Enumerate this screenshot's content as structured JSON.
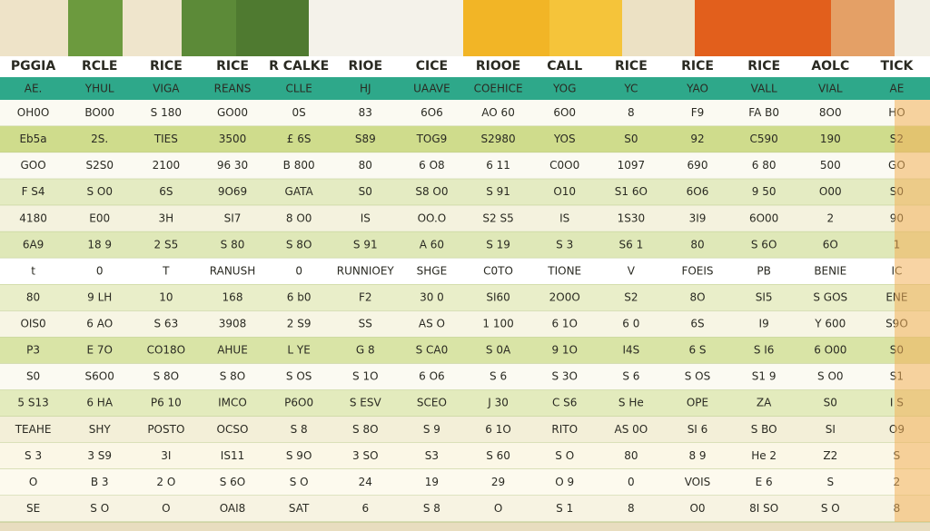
{
  "header": [
    "PGGIA",
    "RCLE",
    "RICE",
    "RICE",
    "R CALKE",
    "RIOE",
    "CICE",
    "RIOOE",
    "CALL",
    "RICE",
    "RICE",
    "RICE",
    "AOLC",
    "TICK"
  ],
  "subheader": [
    "AE.",
    "YHUL",
    "VIGA",
    "REANS",
    "CLLE",
    "HJ",
    "UAAVE",
    "COEHICE",
    "YOG",
    "YC",
    "YAO",
    "VALL",
    "VIAL",
    "AE"
  ],
  "rows": [
    {
      "color": "#fbfaf2",
      "cells": [
        "OH0O",
        "BO00",
        "S 180",
        "GO00",
        "0S",
        "83",
        "6O6",
        "AO 60",
        "6O0",
        "8",
        "F9",
        "FA B0",
        "8O0",
        "HO"
      ]
    },
    {
      "color": "#cfdc8c",
      "cells": [
        "Eb5a",
        "2S.",
        "TIES",
        "3500",
        "£ 6S",
        "S89",
        "TOG9",
        "S2980",
        "YOS",
        "S0",
        "92",
        "C590",
        "190",
        "S2"
      ]
    },
    {
      "color": "#fbfaf2",
      "cells": [
        "GOO",
        "S2S0",
        "2100",
        "96 30",
        "B 800",
        "80",
        "6 O8",
        "6 11",
        "C0O0",
        "1097",
        "690",
        "6 80",
        "500",
        "GO"
      ]
    },
    {
      "color": "#e4ebc2",
      "cells": [
        "F S4",
        "S O0",
        "6S",
        "9O69",
        "GATA",
        "S0",
        "S8 O0",
        "S 91",
        "O10",
        "S1 6O",
        "6O6",
        "9 50",
        "O00",
        "S0"
      ]
    },
    {
      "color": "#f4f2de",
      "cells": [
        "4180",
        "E00",
        "3H",
        "SI7",
        "8 O0",
        "IS",
        "OO.O",
        "S2 S5",
        "IS",
        "1S30",
        "3I9",
        "6O00",
        "2",
        "90"
      ]
    },
    {
      "color": "#dfe8b8",
      "cells": [
        "6A9",
        "18 9",
        "2 S5",
        "S 80",
        "S 8O",
        "S 91",
        "A 60",
        "S 19",
        "S 3",
        "S6 1",
        "80",
        "S 6O",
        "6O",
        "1"
      ]
    },
    {
      "color": "#ffffff",
      "cells": [
        "t",
        "0",
        "T",
        "RANUSH",
        "0",
        "RUNNIOEY",
        "SHGE",
        "C0TO",
        "TIONE",
        "V",
        "FOEIS",
        "PB",
        "BENIE",
        "IC"
      ]
    },
    {
      "color": "#e9eec9",
      "cells": [
        "80",
        "9 LH",
        "10",
        "168",
        "6 b0",
        "F2",
        "30 0",
        "SI60",
        "2O0O",
        "S2",
        "8O",
        "SI5",
        "S GOS",
        "ENE"
      ]
    },
    {
      "color": "#f7f5e4",
      "cells": [
        "OIS0",
        "6 AO",
        "S 63",
        "3908",
        "2 S9",
        "SS",
        "AS O",
        "1 100",
        "6 1O",
        "6 0",
        "6S",
        "I9",
        "Y 600",
        "S9O"
      ]
    },
    {
      "color": "#d9e4a6",
      "cells": [
        "P3",
        "E 7O",
        "CO18O",
        "AHUE",
        "L YE",
        "G 8",
        "S CA0",
        "S 0A",
        "9 1O",
        "I4S",
        "6 S",
        "S I6",
        "6 O00",
        "S0"
      ]
    },
    {
      "color": "#fbfaf2",
      "cells": [
        "S0",
        "S6O0",
        "S 8O",
        "S 8O",
        "S OS",
        "S 1O",
        "6 O6",
        "S 6",
        "S 3O",
        "S 6",
        "S OS",
        "S1 9",
        "S O0",
        "S1"
      ]
    },
    {
      "color": "#e3ebbd",
      "cells": [
        "5 S13",
        "6 HA",
        "P6 10",
        "IMCO",
        "P6O0",
        "S ESV",
        "SCEO",
        "J 30",
        "C S6",
        "S He",
        "OPE",
        "ZA",
        "S0",
        "I S"
      ]
    },
    {
      "color": "#f3efd8",
      "cells": [
        "TEAHE",
        "SHY",
        "POSTO",
        "OCSO",
        "S 8",
        "S 8O",
        "S 9",
        "6 1O",
        "RITO",
        "AS 0O",
        "SI 6",
        "S BO",
        "SI",
        "O9"
      ]
    },
    {
      "color": "#fbf7e6",
      "cells": [
        "S 3",
        "3 S9",
        "3I",
        "IS11",
        "S 9O",
        "3 SO",
        "S3",
        "S 60",
        "S O",
        "80",
        "8 9",
        "He 2",
        "Z2",
        "S"
      ]
    },
    {
      "color": "#fdfaee",
      "cells": [
        "O",
        "B 3",
        "2 O",
        "S 6O",
        "S O",
        "24",
        "19",
        "29",
        "O 9",
        "0",
        "VOIS",
        "E 6",
        "S",
        "2"
      ]
    },
    {
      "color": "#f7f3e2",
      "cells": [
        "SE",
        "S O",
        "O",
        "OAI8",
        "SAT",
        "6",
        "S 8",
        "O",
        "S 1",
        "8",
        "O0",
        "8I SO",
        "S O",
        "8"
      ]
    }
  ]
}
